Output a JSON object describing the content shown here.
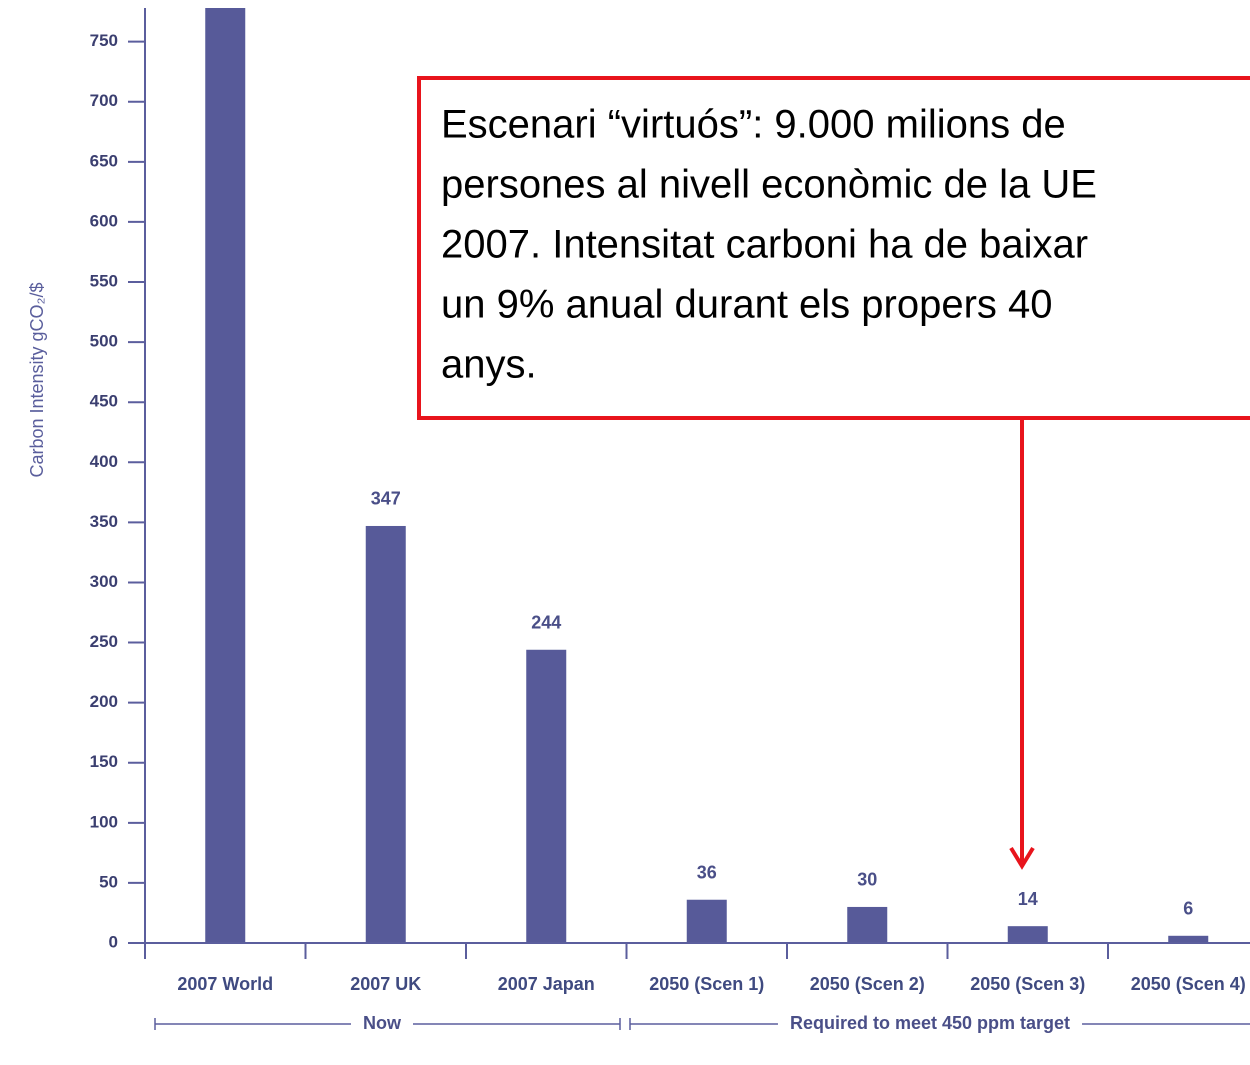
{
  "chart_data": {
    "type": "bar",
    "y_label": "Carbon Intensity gCO₂/$",
    "categories": [
      "2007 World",
      "2007 UK",
      "2007 Japan",
      "2050 (Scen 1)",
      "2050 (Scen 2)",
      "2050 (Scen 3)",
      "2050 (Scen 4)"
    ],
    "values": [
      778,
      347,
      244,
      36,
      30,
      14,
      6
    ],
    "color": "#575a99",
    "ylim": [
      0,
      778
    ],
    "yticks": [
      0,
      50,
      100,
      150,
      200,
      250,
      300,
      350,
      400,
      450,
      500,
      550,
      600,
      650,
      700,
      750
    ],
    "groups": [
      "Now",
      "Required to meet 450 ppm target"
    ],
    "annotation": [
      "Escenari “virtuós”: 9.000 milions de",
      "persones al nivell econòmic de la UE",
      "2007. Intensitat carboni ha de baixar",
      "un 9% anual durant els propers 40",
      "anys."
    ]
  }
}
